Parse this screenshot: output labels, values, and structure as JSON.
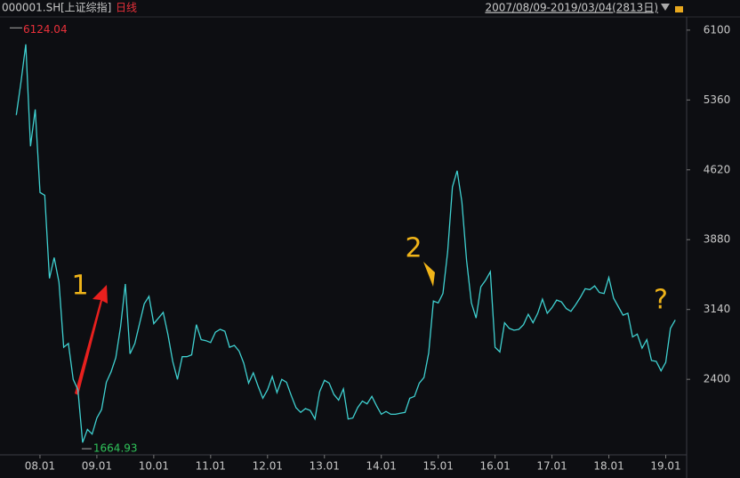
{
  "chart_data": {
    "type": "line",
    "title": "000001.SH",
    "subtitle": "[上证综指]",
    "period": "日线",
    "range": "2007/08/09-2019/03/04(2813日)",
    "categories": [
      null,
      null,
      null,
      null,
      null,
      "08.01",
      null,
      null,
      null,
      null,
      null,
      null,
      null,
      null,
      null,
      null,
      null,
      "09.01",
      null,
      null,
      null,
      null,
      null,
      null,
      null,
      null,
      null,
      null,
      null,
      "10.01",
      null,
      null,
      null,
      null,
      null,
      null,
      null,
      null,
      null,
      null,
      null,
      "11.01",
      null,
      null,
      null,
      null,
      null,
      null,
      null,
      null,
      null,
      null,
      null,
      "12.01",
      null,
      null,
      null,
      null,
      null,
      null,
      null,
      null,
      null,
      null,
      null,
      "13.01",
      null,
      null,
      null,
      null,
      null,
      null,
      null,
      null,
      null,
      null,
      null,
      "14.01",
      null,
      null,
      null,
      null,
      null,
      null,
      null,
      null,
      null,
      null,
      null,
      "15.01",
      null,
      null,
      null,
      null,
      null,
      null,
      null,
      null,
      null,
      null,
      null,
      "16.01",
      null,
      null,
      null,
      null,
      null,
      null,
      null,
      null,
      null,
      null,
      null,
      "17.01",
      null,
      null,
      null,
      null,
      null,
      null,
      null,
      null,
      null,
      null,
      null,
      "18.01",
      null,
      null,
      null,
      null,
      null,
      null,
      null,
      null,
      null,
      null,
      null,
      "19.01",
      null,
      null
    ],
    "series": [
      {
        "color": "#3fd0d0",
        "values": [
          5200,
          5550,
          5950,
          4870,
          5260,
          4380,
          4350,
          3470,
          3690,
          3430,
          2740,
          2780,
          2400,
          2290,
          1730,
          1870,
          1820,
          1990,
          2080,
          2370,
          2480,
          2630,
          2960,
          3410,
          2670,
          2780,
          2990,
          3200,
          3280,
          2990,
          3050,
          3110,
          2870,
          2590,
          2400,
          2640,
          2640,
          2660,
          2980,
          2820,
          2810,
          2790,
          2900,
          2930,
          2910,
          2740,
          2760,
          2700,
          2570,
          2360,
          2470,
          2330,
          2200,
          2290,
          2430,
          2260,
          2400,
          2370,
          2230,
          2100,
          2050,
          2090,
          2070,
          1980,
          2270,
          2390,
          2360,
          2240,
          2180,
          2300,
          1980,
          1990,
          2100,
          2170,
          2140,
          2220,
          2120,
          2030,
          2060,
          2030,
          2030,
          2040,
          2050,
          2200,
          2220,
          2360,
          2420,
          2680,
          3230,
          3210,
          3310,
          3750,
          4440,
          4610,
          4280,
          3660,
          3210,
          3050,
          3380,
          3450,
          3540,
          2740,
          2690,
          3000,
          2940,
          2920,
          2930,
          2980,
          3090,
          3000,
          3100,
          3250,
          3100,
          3160,
          3240,
          3220,
          3150,
          3120,
          3190,
          3270,
          3360,
          3350,
          3390,
          3320,
          3310,
          3480,
          3260,
          3170,
          3080,
          3100,
          2850,
          2880,
          2730,
          2820,
          2600,
          2590,
          2490,
          2580,
          2940,
          3030
        ]
      }
    ],
    "ylim": [
      1600,
      6240
    ],
    "yticks": [
      2400,
      3140,
      3880,
      4620,
      5360,
      6100
    ],
    "high_label": 6124.04,
    "low_label": 1664.93,
    "annotations": [
      "1",
      "2",
      "?"
    ]
  }
}
